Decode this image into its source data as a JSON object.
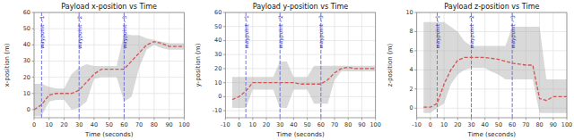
{
  "chart_data": [
    {
      "type": "line",
      "title": "Payload x-position vs Time",
      "x_label": "Time (seconds)",
      "y_label": "x-position (m)",
      "xlim": [
        0,
        100
      ],
      "ylim": [
        -5,
        60
      ],
      "xticks": [
        0,
        10,
        20,
        30,
        40,
        50,
        60,
        70,
        80,
        90,
        100
      ],
      "yticks": [
        0,
        10,
        20,
        30,
        40,
        50,
        60
      ],
      "grid": true,
      "x": [
        0,
        5,
        10,
        15,
        20,
        25,
        30,
        35,
        40,
        45,
        50,
        55,
        60,
        65,
        70,
        75,
        80,
        85,
        90,
        95,
        100
      ],
      "series": [
        {
          "type": "band",
          "color": "#aaaaaa",
          "upper": [
            16,
            16,
            14,
            13,
            13,
            22,
            26,
            28,
            27,
            27,
            27,
            27,
            47,
            46,
            46,
            44,
            43,
            42,
            41,
            41,
            41
          ],
          "lower": [
            -4,
            -4,
            5,
            6,
            6,
            0,
            1,
            5,
            19,
            20,
            20,
            20,
            5,
            8,
            26,
            37,
            40,
            38,
            37,
            37,
            37
          ]
        },
        {
          "type": "line",
          "color": "#d05555",
          "line_style": "dashed",
          "values": [
            0,
            3,
            9,
            10,
            10,
            10,
            12,
            17,
            22,
            25,
            25,
            25,
            25,
            30,
            35,
            40,
            42,
            41,
            39,
            39,
            39
          ]
        }
      ],
      "vlines": [
        {
          "x": 5,
          "color": "#7777dd",
          "line_style": "dashed"
        },
        {
          "x": 30,
          "color": "#7777dd",
          "line_style": "dashed"
        },
        {
          "x": 60,
          "color": "#7777dd",
          "line_style": "dashed"
        }
      ],
      "annotations": [
        {
          "x": 5,
          "y": 58,
          "text": "waypoint - 1",
          "color": "#3333bb"
        },
        {
          "x": 30,
          "y": 58,
          "text": "waypoint - 2",
          "color": "#3333bb"
        },
        {
          "x": 60,
          "y": 58,
          "text": "waypoint - 3",
          "color": "#3333bb"
        }
      ]
    },
    {
      "type": "line",
      "title": "Payload y-position vs Time",
      "x_label": "Time (seconds)",
      "y_label": "y-position (m)",
      "xlim": [
        -10,
        100
      ],
      "ylim": [
        -15,
        60
      ],
      "xticks": [
        -10,
        0,
        10,
        20,
        30,
        40,
        50,
        60,
        70,
        80,
        90,
        100
      ],
      "yticks": [
        -10,
        0,
        10,
        20,
        30,
        40,
        50,
        60
      ],
      "grid": true,
      "x": [
        -5,
        0,
        5,
        10,
        15,
        20,
        25,
        30,
        35,
        40,
        45,
        50,
        55,
        60,
        65,
        70,
        75,
        80,
        85,
        90,
        95,
        100
      ],
      "series": [
        {
          "type": "band",
          "color": "#aaaaaa",
          "upper": [
            14,
            14,
            14,
            14,
            14,
            14,
            14,
            25,
            25,
            14,
            14,
            14,
            22,
            22,
            22,
            22,
            22,
            22,
            22,
            22,
            22,
            22
          ],
          "lower": [
            -8,
            -8,
            -8,
            5,
            5,
            5,
            5,
            -8,
            -8,
            5,
            5,
            5,
            -5,
            -5,
            -5,
            12,
            18,
            18,
            18,
            18,
            18,
            18
          ]
        },
        {
          "type": "line",
          "color": "#d05555",
          "line_style": "dashed",
          "values": [
            -2,
            0,
            4,
            10,
            10,
            10,
            10,
            10,
            10,
            10,
            9,
            9,
            9,
            9,
            12,
            17,
            20,
            21,
            20,
            20,
            20,
            20
          ]
        }
      ],
      "vlines": [
        {
          "x": 5,
          "color": "#7777dd",
          "line_style": "dashed"
        },
        {
          "x": 30,
          "color": "#7777dd",
          "line_style": "dashed"
        },
        {
          "x": 60,
          "color": "#7777dd",
          "line_style": "dashed"
        }
      ],
      "annotations": [
        {
          "x": 5,
          "y": 58,
          "text": "waypoint - 1",
          "color": "#3333bb"
        },
        {
          "x": 30,
          "y": 58,
          "text": "waypoint - 2",
          "color": "#3333bb"
        },
        {
          "x": 60,
          "y": 58,
          "text": "waypoint - 3",
          "color": "#3333bb"
        }
      ]
    },
    {
      "type": "line",
      "title": "Payload z-position vs Time",
      "x_label": "Time (seconds)",
      "y_label": "z-position (m)",
      "xlim": [
        -10,
        100
      ],
      "ylim": [
        -1,
        10
      ],
      "xticks": [
        -10,
        0,
        10,
        20,
        30,
        40,
        50,
        60,
        70,
        80,
        90,
        100
      ],
      "yticks": [
        0,
        2,
        4,
        6,
        8,
        10
      ],
      "grid": true,
      "x": [
        -5,
        0,
        5,
        10,
        15,
        20,
        25,
        30,
        35,
        40,
        45,
        50,
        55,
        60,
        65,
        70,
        75,
        80,
        85,
        90,
        95,
        100
      ],
      "series": [
        {
          "type": "band",
          "color": "#aaaaaa",
          "upper": [
            9.0,
            9.0,
            9.0,
            9.0,
            8.5,
            8.0,
            7.0,
            6.5,
            6.5,
            6.5,
            6.5,
            6.5,
            6.5,
            8.5,
            8.5,
            8.5,
            8.5,
            8.5,
            3.0,
            3.0,
            3.0,
            3.0
          ],
          "lower": [
            -0.5,
            -0.5,
            0.0,
            0.5,
            2.5,
            3.5,
            4.0,
            4.2,
            4.2,
            4.2,
            3.8,
            3.5,
            3.0,
            3.0,
            3.0,
            3.0,
            3.0,
            -0.5,
            -0.5,
            -0.5,
            -0.5,
            -0.5
          ]
        },
        {
          "type": "line",
          "color": "#d05555",
          "line_style": "dashed",
          "values": [
            0.1,
            0.1,
            0.5,
            2.5,
            4.0,
            5.0,
            5.3,
            5.3,
            5.3,
            5.3,
            5.2,
            5.1,
            4.9,
            4.7,
            4.6,
            4.5,
            4.5,
            1.0,
            0.8,
            1.2,
            1.2,
            1.2
          ]
        }
      ],
      "vlines": [
        {
          "x": 5,
          "color": "#7777dd",
          "line_style": "dashed"
        },
        {
          "x": 30,
          "color": "#7777dd",
          "line_style": "dashed"
        },
        {
          "x": 60,
          "color": "#7777dd",
          "line_style": "dashed"
        }
      ],
      "annotations": [
        {
          "x": 5,
          "y": 9.7,
          "text": "waypoint - 1",
          "color": "#3333bb"
        },
        {
          "x": 30,
          "y": 9.7,
          "text": "waypoint - 2",
          "color": "#3333bb"
        },
        {
          "x": 60,
          "y": 9.7,
          "text": "waypoint - 3",
          "color": "#3333bb"
        }
      ]
    }
  ]
}
